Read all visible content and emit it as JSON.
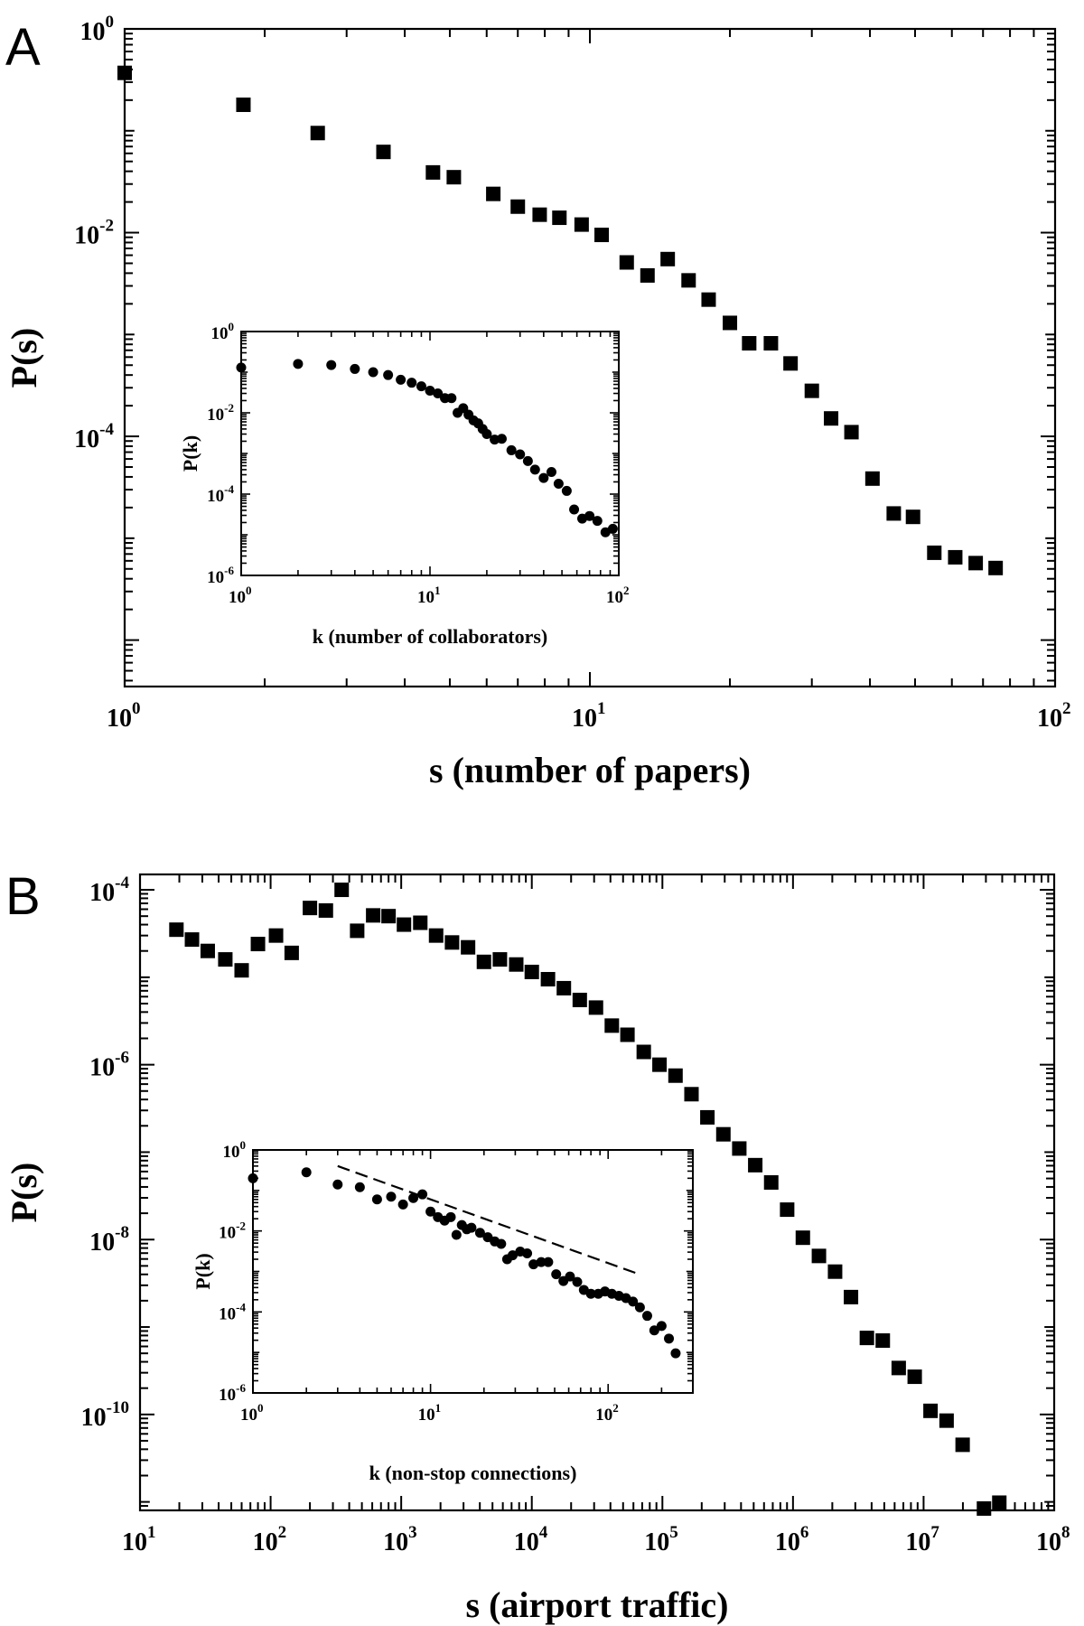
{
  "chart_data": [
    {
      "panel": "A",
      "type": "scatter",
      "xscale": "log",
      "yscale": "log",
      "xlabel": "s (number of papers)",
      "ylabel": "P(s)",
      "xlim": [
        1,
        100
      ],
      "ylim": [
        3.5e-07,
        1
      ],
      "xticks": [
        {
          "base": "10",
          "exp": "0"
        },
        {
          "base": "10",
          "exp": "1"
        },
        {
          "base": "10",
          "exp": "2"
        }
      ],
      "yticks": [
        {
          "base": "10",
          "exp": "0"
        },
        {
          "base": "10",
          "exp": "-2"
        },
        {
          "base": "10",
          "exp": "-4"
        }
      ],
      "marker": "square",
      "x": [
        1,
        1.8,
        2.6,
        3.6,
        4.6,
        5.1,
        6.2,
        7.0,
        7.8,
        8.6,
        9.6,
        10.6,
        12,
        13.3,
        14.7,
        16.3,
        18,
        20,
        22,
        24.5,
        27,
        30,
        33,
        36.5,
        40.5,
        45,
        49.5,
        55,
        61,
        67.5,
        74.5
      ],
      "y": [
        0.37,
        0.18,
        0.095,
        0.062,
        0.039,
        0.035,
        0.024,
        0.018,
        0.015,
        0.014,
        0.012,
        0.0095,
        0.0051,
        0.0038,
        0.0055,
        0.0034,
        0.0022,
        0.0013,
        0.00082,
        0.00082,
        0.00052,
        0.00028,
        0.00015,
        0.00011,
        3.85e-05,
        1.75e-05,
        1.62e-05,
        7.2e-06,
        6.5e-06,
        5.7e-06,
        5.1e-06
      ],
      "inset": {
        "type": "scatter",
        "xscale": "log",
        "yscale": "log",
        "xlabel": "k (number of collaborators)",
        "ylabel": "P(k)",
        "xlim": [
          1,
          100
        ],
        "ylim": [
          1e-06,
          1
        ],
        "xticks": [
          {
            "base": "10",
            "exp": "0"
          },
          {
            "base": "10",
            "exp": "1"
          },
          {
            "base": "10",
            "exp": "2"
          }
        ],
        "yticks": [
          {
            "base": "10",
            "exp": "0"
          },
          {
            "base": "10",
            "exp": "-2"
          },
          {
            "base": "10",
            "exp": "-4"
          },
          {
            "base": "10",
            "exp": "-6"
          }
        ],
        "marker": "circle",
        "x": [
          1,
          2,
          3,
          4,
          5,
          6,
          7,
          8,
          9,
          10,
          11,
          12,
          13,
          14,
          15,
          16,
          17,
          18,
          19,
          20,
          22,
          24,
          27,
          30,
          33,
          36,
          40,
          44,
          48,
          53,
          58,
          64,
          70,
          77,
          85,
          93
        ],
        "y": [
          0.13,
          0.16,
          0.15,
          0.12,
          0.1,
          0.085,
          0.065,
          0.055,
          0.045,
          0.035,
          0.03,
          0.023,
          0.023,
          0.01,
          0.013,
          0.009,
          0.0065,
          0.0055,
          0.004,
          0.003,
          0.0022,
          0.0023,
          0.0012,
          0.00095,
          0.00065,
          0.0004,
          0.00025,
          0.00035,
          0.00018,
          0.00012,
          4.2e-05,
          2.5e-05,
          2.9e-05,
          2.2e-05,
          1.15e-05,
          1.4e-05
        ]
      }
    },
    {
      "panel": "B",
      "type": "scatter",
      "xscale": "log",
      "yscale": "log",
      "xlabel": "s (airport traffic)",
      "ylabel": "P(s)",
      "xlim": [
        10,
        100000000
      ],
      "ylim": [
        8e-12,
        0.00015
      ],
      "xticks": [
        {
          "base": "10",
          "exp": "1"
        },
        {
          "base": "10",
          "exp": "2"
        },
        {
          "base": "10",
          "exp": "3"
        },
        {
          "base": "10",
          "exp": "4"
        },
        {
          "base": "10",
          "exp": "5"
        },
        {
          "base": "10",
          "exp": "6"
        },
        {
          "base": "10",
          "exp": "7"
        },
        {
          "base": "10",
          "exp": "8"
        }
      ],
      "yticks": [
        {
          "base": "10",
          "exp": "-4"
        },
        {
          "base": "10",
          "exp": "-6"
        },
        {
          "base": "10",
          "exp": "-8"
        },
        {
          "base": "10",
          "exp": "-10"
        }
      ],
      "marker": "square",
      "x": [
        19,
        25,
        33,
        45,
        60,
        80,
        110,
        145,
        200,
        265,
        350,
        460,
        610,
        800,
        1050,
        1400,
        1850,
        2450,
        3250,
        4300,
        5700,
        7600,
        10000,
        13300,
        17600,
        23300,
        31000,
        41000,
        54000,
        72000,
        95000,
        126000,
        167000,
        221000,
        293000,
        388000,
        514000,
        681000,
        902000,
        1190000,
        1580000,
        2100000,
        2780000,
        3680000,
        4870000,
        6450000,
        8550000,
        11300000,
        15000000,
        19900000,
        29000000,
        38000000
      ],
      "y": [
        3.5e-05,
        2.7e-05,
        2e-05,
        1.6e-05,
        1.2e-05,
        2.4e-05,
        3e-05,
        1.9e-05,
        6.2e-05,
        5.8e-05,
        0.0001,
        3.4e-05,
        5.1e-05,
        5e-05,
        4e-05,
        4.2e-05,
        3e-05,
        2.5e-05,
        2.2e-05,
        1.5e-05,
        1.6e-05,
        1.4e-05,
        1.15e-05,
        9.5e-06,
        7.5e-06,
        5.5e-06,
        4.5e-06,
        2.8e-06,
        2.2e-06,
        1.4e-06,
        1e-06,
        7.5e-07,
        4.6e-07,
        2.5e-07,
        1.6e-07,
        1.1e-07,
        7.1e-08,
        4.5e-08,
        2.2e-08,
        1.05e-08,
        6.5e-09,
        4.3e-09,
        2.2e-09,
        7.5e-10,
        7e-10,
        3.4e-10,
        2.7e-10,
        1.1e-10,
        8.5e-11,
        4.5e-11,
        8.4e-12,
        9.8e-12
      ]
    },
    {
      "panel": "B-inset",
      "type": "scatter",
      "xscale": "log",
      "yscale": "log",
      "xlabel": "k (non-stop connections)",
      "ylabel": "P(k)",
      "xlim": [
        1,
        300
      ],
      "ylim": [
        1e-06,
        1
      ],
      "xticks": [
        {
          "base": "10",
          "exp": "0"
        },
        {
          "base": "10",
          "exp": "1"
        },
        {
          "base": "10",
          "exp": "2"
        }
      ],
      "yticks": [
        {
          "base": "10",
          "exp": "0"
        },
        {
          "base": "10",
          "exp": "-2"
        },
        {
          "base": "10",
          "exp": "-4"
        },
        {
          "base": "10",
          "exp": "-6"
        }
      ],
      "marker": "circle",
      "x": [
        1,
        2,
        3,
        4,
        5,
        6,
        7,
        8,
        9,
        10,
        11,
        12,
        13,
        14,
        15,
        16,
        17,
        19,
        21,
        23,
        25,
        27,
        29,
        32,
        35,
        38,
        42,
        46,
        51,
        56,
        61,
        67,
        73,
        80,
        88,
        96,
        105,
        115,
        126,
        138,
        151,
        166,
        182,
        200,
        220,
        240
      ],
      "y": [
        0.2,
        0.28,
        0.14,
        0.12,
        0.06,
        0.07,
        0.045,
        0.065,
        0.08,
        0.03,
        0.022,
        0.018,
        0.022,
        0.008,
        0.014,
        0.011,
        0.012,
        0.009,
        0.007,
        0.0055,
        0.0048,
        0.002,
        0.0025,
        0.0031,
        0.0028,
        0.0015,
        0.0017,
        0.0017,
        0.00085,
        0.00058,
        0.00075,
        0.00055,
        0.00035,
        0.00028,
        0.00028,
        0.00032,
        0.00028,
        0.00025,
        0.00022,
        0.00018,
        0.00013,
        8e-05,
        3.5e-05,
        4.5e-05,
        2.2e-05,
        9.5e-06
      ],
      "reference_line": {
        "x": [
          3,
          150
        ],
        "y": [
          0.4,
          0.00085
        ]
      }
    }
  ]
}
